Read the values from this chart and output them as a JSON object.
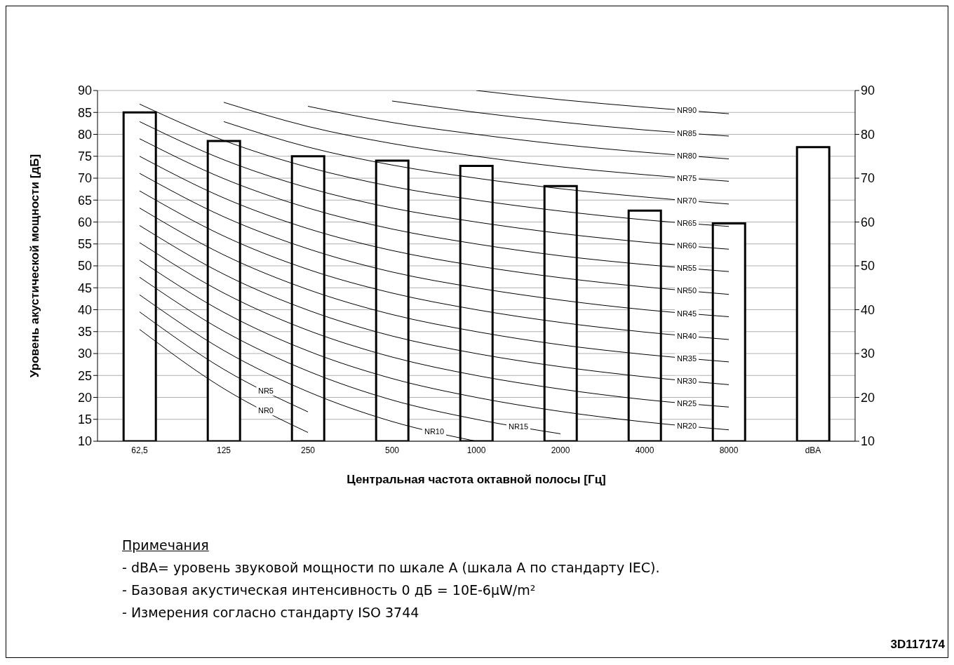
{
  "chart_data": {
    "type": "bar",
    "xlabel": "Центральная частота октавной полосы [Гц]",
    "ylabel": "Уровень акустической мощности [дБ]",
    "categories": [
      "62,5",
      "125",
      "250",
      "500",
      "1000",
      "2000",
      "4000",
      "8000",
      "dBA"
    ],
    "series": [
      {
        "color": "#ffffff",
        "values": [
          85,
          78.5,
          75,
          74,
          72.8,
          68.2,
          62.6,
          59.7,
          77.1
        ]
      },
      {
        "type": "line",
        "name": "NR0",
        "color": "#000000",
        "values": [
          35.5,
          22,
          12,
          null,
          null,
          null,
          null,
          null,
          null
        ]
      },
      {
        "type": "line",
        "name": "NR5",
        "color": "#000000",
        "values": [
          39.5,
          26.4,
          16.7,
          null,
          null,
          null,
          null,
          null,
          null
        ]
      },
      {
        "type": "line",
        "name": "NR10",
        "color": "#000000",
        "values": [
          43.4,
          30.7,
          21.3,
          14.5,
          10,
          null,
          null,
          null,
          null
        ]
      },
      {
        "type": "line",
        "name": "NR15",
        "color": "#000000",
        "values": [
          47.4,
          35.1,
          26,
          19.4,
          15,
          11.7,
          null,
          null,
          null
        ]
      },
      {
        "type": "line",
        "name": "NR20",
        "color": "#000000",
        "values": [
          51.3,
          39.4,
          30.6,
          24.3,
          20,
          16.8,
          14.4,
          12.6,
          null
        ]
      },
      {
        "type": "line",
        "name": "NR25",
        "color": "#000000",
        "values": [
          55.3,
          43.8,
          35.3,
          29.2,
          25,
          21.9,
          19.5,
          17.8,
          null
        ]
      },
      {
        "type": "line",
        "name": "NR30",
        "color": "#000000",
        "values": [
          59.2,
          48.1,
          39.9,
          34,
          30,
          27,
          24.7,
          22.9,
          null
        ]
      },
      {
        "type": "line",
        "name": "NR35",
        "color": "#000000",
        "values": [
          63.2,
          52.5,
          44.6,
          38.9,
          35,
          32,
          29.8,
          28.1,
          null
        ]
      },
      {
        "type": "line",
        "name": "NR40",
        "color": "#000000",
        "values": [
          67.1,
          56.8,
          49.2,
          43.8,
          40,
          37.1,
          34.9,
          33.2,
          null
        ]
      },
      {
        "type": "line",
        "name": "NR45",
        "color": "#000000",
        "values": [
          71.1,
          61.2,
          53.9,
          48.6,
          45,
          42.2,
          40,
          38.4,
          null
        ]
      },
      {
        "type": "line",
        "name": "NR50",
        "color": "#000000",
        "values": [
          75,
          65.5,
          58.5,
          53.5,
          50,
          47.3,
          45.2,
          43.5,
          null
        ]
      },
      {
        "type": "line",
        "name": "NR55",
        "color": "#000000",
        "values": [
          79,
          69.9,
          63.2,
          58.4,
          55,
          52.3,
          50.3,
          48.7,
          null
        ]
      },
      {
        "type": "line",
        "name": "NR60",
        "color": "#000000",
        "values": [
          82.9,
          74.2,
          67.8,
          63.2,
          60,
          57.4,
          55.4,
          53.8,
          null
        ]
      },
      {
        "type": "line",
        "name": "NR65",
        "color": "#000000",
        "values": [
          86.9,
          78.6,
          72.5,
          68.1,
          65,
          62.5,
          60.5,
          59,
          null
        ]
      },
      {
        "type": "line",
        "name": "NR70",
        "color": "#000000",
        "values": [
          null,
          82.9,
          77.1,
          73,
          70,
          67.6,
          65.7,
          64.1,
          null
        ]
      },
      {
        "type": "line",
        "name": "NR75",
        "color": "#000000",
        "values": [
          null,
          87.3,
          81.8,
          77.9,
          75,
          72.6,
          70.8,
          69.3,
          null
        ]
      },
      {
        "type": "line",
        "name": "NR80",
        "color": "#000000",
        "values": [
          null,
          null,
          86.4,
          82.7,
          80,
          77.7,
          75.9,
          74.4,
          null
        ]
      },
      {
        "type": "line",
        "name": "NR85",
        "color": "#000000",
        "values": [
          null,
          null,
          null,
          87.6,
          85,
          82.8,
          81,
          79.6,
          null
        ]
      },
      {
        "type": "line",
        "name": "NR90",
        "color": "#000000",
        "values": [
          null,
          null,
          null,
          null,
          90,
          87.9,
          86.2,
          84.7,
          null
        ]
      }
    ],
    "ylim": [
      10,
      90
    ],
    "yticks": [
      10,
      15,
      20,
      25,
      30,
      35,
      40,
      45,
      50,
      55,
      60,
      65,
      70,
      75,
      80,
      85,
      90
    ],
    "y2lim": [
      10,
      90
    ],
    "y2ticks": [
      10,
      20,
      30,
      40,
      50,
      60,
      70,
      80,
      90
    ],
    "grid": "y",
    "marker": "none",
    "line_style": "solid",
    "annotations": [
      "Примечания",
      "- dBA= уровень звуковой мощности по шкале А (шкала А по стандарту IEC).",
      "- Базовая акустическая интенсивность 0 дБ = 10E-6µW/m²",
      "- Измерения согласно стандарту ISO 3744",
      "3D117174"
    ]
  }
}
